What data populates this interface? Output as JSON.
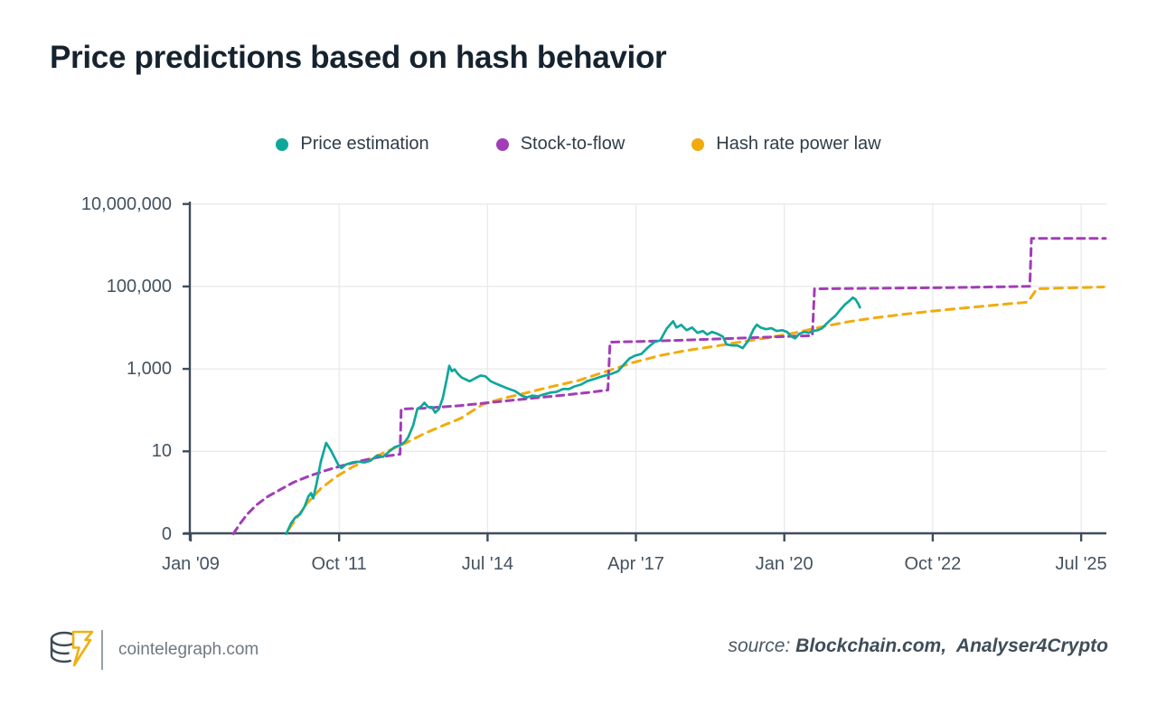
{
  "title": "Price predictions based on hash behavior",
  "legend": [
    {
      "label": "Price estimation",
      "color": "#10A79B"
    },
    {
      "label": "Stock-to-flow",
      "color": "#A23DB7"
    },
    {
      "label": "Hash rate power law",
      "color": "#F2AB0C"
    }
  ],
  "footer": {
    "brand": "cointelegraph.com",
    "source_label": "source:",
    "source_names": "Blockchain.com,  Analyser4Crypto"
  },
  "chart_data": {
    "type": "line",
    "title": "Price predictions based on hash behavior",
    "y_scale": "log",
    "ylim_values": [
      0.1,
      10000000
    ],
    "grid": true,
    "legend_position": "top-center",
    "colors": {
      "axis": "#3D4D5B",
      "gridline": "#E8EAEC",
      "tick_text": "#44525F"
    },
    "y_ticks": [
      {
        "label": "10,000,000",
        "value": 10000000
      },
      {
        "label": "100,000",
        "value": 100000
      },
      {
        "label": "1,000",
        "value": 1000
      },
      {
        "label": "10",
        "value": 10
      },
      {
        "label": "0",
        "value": 0.1
      }
    ],
    "x_ticks": [
      {
        "label": "Jan '09",
        "year": 2009.0
      },
      {
        "label": "Oct '11",
        "year": 2011.75
      },
      {
        "label": "Jul '14",
        "year": 2014.5
      },
      {
        "label": "Apr '17",
        "year": 2017.25
      },
      {
        "label": "Jan '20",
        "year": 2020.0
      },
      {
        "label": "Oct '22",
        "year": 2022.75
      },
      {
        "label": "Jul '25",
        "year": 2025.5
      }
    ],
    "series": [
      {
        "name": "Hash rate power law",
        "slug": "hash-rate-power-law-line",
        "color": "#F2AB0C",
        "dash": "9 7",
        "width": 3,
        "points": [
          [
            2010.82,
            0.13
          ],
          [
            2010.99,
            0.27
          ],
          [
            2011.16,
            0.56
          ],
          [
            2011.41,
            1.25
          ],
          [
            2011.69,
            2.4
          ],
          [
            2012.0,
            4.2
          ],
          [
            2012.33,
            6.6
          ],
          [
            2012.67,
            10.4
          ],
          [
            2013.0,
            16.3
          ],
          [
            2013.33,
            27
          ],
          [
            2013.67,
            42
          ],
          [
            2014.0,
            63
          ],
          [
            2014.42,
            140
          ],
          [
            2014.84,
            200
          ],
          [
            2015.26,
            270
          ],
          [
            2015.68,
            370
          ],
          [
            2016.18,
            520
          ],
          [
            2016.68,
            850
          ],
          [
            2017.18,
            1400
          ],
          [
            2017.69,
            2100
          ],
          [
            2018.19,
            2800
          ],
          [
            2018.69,
            3500
          ],
          [
            2019.19,
            4500
          ],
          [
            2019.7,
            5700
          ],
          [
            2020.2,
            7500
          ],
          [
            2020.7,
            10500
          ],
          [
            2021.2,
            14000
          ],
          [
            2021.7,
            17500
          ],
          [
            2022.2,
            21000
          ],
          [
            2022.71,
            25000
          ],
          [
            2023.21,
            29000
          ],
          [
            2023.71,
            33500
          ],
          [
            2024.21,
            38500
          ],
          [
            2024.51,
            41500
          ],
          [
            2024.68,
            87700
          ],
          [
            2025.05,
            91000
          ],
          [
            2025.92,
            97000
          ]
        ]
      },
      {
        "name": "Stock-to-flow",
        "slug": "stock-to-flow-line",
        "color": "#A23DB7",
        "dash": "8 6",
        "width": 3,
        "points": [
          [
            2009.79,
            0.1
          ],
          [
            2009.92,
            0.18
          ],
          [
            2010.05,
            0.3
          ],
          [
            2010.22,
            0.5
          ],
          [
            2010.42,
            0.79
          ],
          [
            2010.66,
            1.18
          ],
          [
            2010.91,
            1.78
          ],
          [
            2011.19,
            2.5
          ],
          [
            2011.49,
            3.4
          ],
          [
            2011.83,
            4.6
          ],
          [
            2012.16,
            5.9
          ],
          [
            2012.5,
            7.3
          ],
          [
            2012.88,
            8.5
          ],
          [
            2012.9,
            106
          ],
          [
            2013.33,
            111
          ],
          [
            2014.0,
            129
          ],
          [
            2014.84,
            167
          ],
          [
            2015.68,
            215
          ],
          [
            2016.35,
            265
          ],
          [
            2016.73,
            307
          ],
          [
            2016.77,
            4450
          ],
          [
            2017.52,
            4700
          ],
          [
            2018.52,
            5200
          ],
          [
            2019.53,
            5800
          ],
          [
            2020.52,
            6400
          ],
          [
            2020.56,
            87700
          ],
          [
            2021.5,
            90000
          ],
          [
            2023.2,
            94000
          ],
          [
            2024.55,
            101000
          ],
          [
            2024.58,
            1470000
          ],
          [
            2025.95,
            1470000
          ]
        ]
      },
      {
        "name": "Price estimation",
        "slug": "price-estimation-line",
        "color": "#10A79B",
        "dash": "",
        "width": 2.7,
        "points": [
          [
            2010.77,
            0.1
          ],
          [
            2010.86,
            0.18
          ],
          [
            2010.94,
            0.25
          ],
          [
            2011.03,
            0.3
          ],
          [
            2011.11,
            0.46
          ],
          [
            2011.18,
            0.8
          ],
          [
            2011.23,
            0.97
          ],
          [
            2011.27,
            0.72
          ],
          [
            2011.33,
            1.6
          ],
          [
            2011.41,
            5.6
          ],
          [
            2011.51,
            16
          ],
          [
            2011.59,
            11
          ],
          [
            2011.66,
            7.3
          ],
          [
            2011.73,
            4.8
          ],
          [
            2011.79,
            3.9
          ],
          [
            2011.88,
            4.8
          ],
          [
            2012.0,
            5.4
          ],
          [
            2012.11,
            5.6
          ],
          [
            2012.23,
            5.4
          ],
          [
            2012.33,
            5.9
          ],
          [
            2012.46,
            8.0
          ],
          [
            2012.56,
            7.3
          ],
          [
            2012.68,
            9.9
          ],
          [
            2012.78,
            12.7
          ],
          [
            2012.88,
            14
          ],
          [
            2012.97,
            17
          ],
          [
            2013.03,
            22
          ],
          [
            2013.12,
            42
          ],
          [
            2013.2,
            106
          ],
          [
            2013.27,
            123
          ],
          [
            2013.33,
            151
          ],
          [
            2013.4,
            118
          ],
          [
            2013.47,
            118
          ],
          [
            2013.53,
            87
          ],
          [
            2013.6,
            106
          ],
          [
            2013.67,
            194
          ],
          [
            2013.74,
            533
          ],
          [
            2013.79,
            1190
          ],
          [
            2013.84,
            880
          ],
          [
            2013.89,
            970
          ],
          [
            2013.95,
            760
          ],
          [
            2014.02,
            620
          ],
          [
            2014.09,
            560
          ],
          [
            2014.17,
            500
          ],
          [
            2014.27,
            590
          ],
          [
            2014.37,
            690
          ],
          [
            2014.46,
            660
          ],
          [
            2014.56,
            500
          ],
          [
            2014.67,
            430
          ],
          [
            2014.79,
            370
          ],
          [
            2014.89,
            330
          ],
          [
            2015.01,
            290
          ],
          [
            2015.13,
            225
          ],
          [
            2015.23,
            203
          ],
          [
            2015.33,
            225
          ],
          [
            2015.43,
            215
          ],
          [
            2015.54,
            240
          ],
          [
            2015.66,
            265
          ],
          [
            2015.78,
            278
          ],
          [
            2015.9,
            325
          ],
          [
            2016.01,
            325
          ],
          [
            2016.11,
            375
          ],
          [
            2016.23,
            415
          ],
          [
            2016.35,
            505
          ],
          [
            2016.46,
            560
          ],
          [
            2016.56,
            620
          ],
          [
            2016.68,
            690
          ],
          [
            2016.8,
            760
          ],
          [
            2016.92,
            880
          ],
          [
            2017.02,
            1250
          ],
          [
            2017.13,
            1790
          ],
          [
            2017.23,
            2080
          ],
          [
            2017.35,
            2300
          ],
          [
            2017.47,
            3300
          ],
          [
            2017.59,
            4450
          ],
          [
            2017.7,
            4900
          ],
          [
            2017.82,
            9500
          ],
          [
            2017.94,
            14300
          ],
          [
            2018.0,
            10100
          ],
          [
            2018.09,
            11700
          ],
          [
            2018.19,
            8700
          ],
          [
            2018.29,
            10100
          ],
          [
            2018.39,
            7500
          ],
          [
            2018.49,
            8300
          ],
          [
            2018.57,
            6800
          ],
          [
            2018.66,
            7900
          ],
          [
            2018.76,
            7100
          ],
          [
            2018.86,
            6100
          ],
          [
            2018.93,
            3900
          ],
          [
            2019.03,
            3700
          ],
          [
            2019.13,
            3700
          ],
          [
            2019.23,
            3200
          ],
          [
            2019.33,
            4800
          ],
          [
            2019.43,
            9200
          ],
          [
            2019.49,
            11800
          ],
          [
            2019.56,
            10100
          ],
          [
            2019.66,
            9200
          ],
          [
            2019.76,
            9700
          ],
          [
            2019.86,
            8300
          ],
          [
            2019.96,
            8700
          ],
          [
            2020.05,
            7900
          ],
          [
            2020.13,
            6100
          ],
          [
            2020.2,
            5500
          ],
          [
            2020.28,
            7100
          ],
          [
            2020.37,
            7900
          ],
          [
            2020.45,
            7500
          ],
          [
            2020.53,
            8300
          ],
          [
            2020.62,
            8700
          ],
          [
            2020.7,
            9700
          ],
          [
            2020.78,
            12400
          ],
          [
            2020.87,
            16000
          ],
          [
            2020.95,
            19600
          ],
          [
            2021.03,
            26500
          ],
          [
            2021.12,
            36000
          ],
          [
            2021.2,
            44000
          ],
          [
            2021.27,
            53500
          ],
          [
            2021.32,
            48500
          ],
          [
            2021.37,
            38000
          ],
          [
            2021.4,
            31000
          ]
        ]
      }
    ]
  }
}
